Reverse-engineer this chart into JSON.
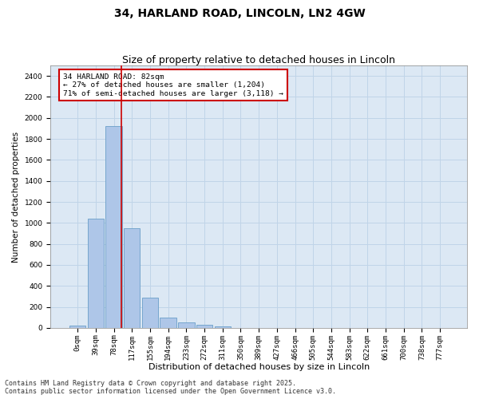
{
  "title": "34, HARLAND ROAD, LINCOLN, LN2 4GW",
  "subtitle": "Size of property relative to detached houses in Lincoln",
  "xlabel": "Distribution of detached houses by size in Lincoln",
  "ylabel": "Number of detached properties",
  "bar_color": "#aec6e8",
  "bar_edge_color": "#6a9fc8",
  "grid_color": "#c0d4e8",
  "background_color": "#dce8f4",
  "annotation_box_color": "#cc0000",
  "annotation_title": "34 HARLAND ROAD: 82sqm",
  "annotation_line1": "← 27% of detached houses are smaller (1,204)",
  "annotation_line2": "71% of semi-detached houses are larger (3,118) →",
  "red_line_bin_index": 2,
  "categories": [
    "0sqm",
    "39sqm",
    "78sqm",
    "117sqm",
    "155sqm",
    "194sqm",
    "233sqm",
    "272sqm",
    "311sqm",
    "350sqm",
    "389sqm",
    "427sqm",
    "466sqm",
    "505sqm",
    "544sqm",
    "583sqm",
    "622sqm",
    "661sqm",
    "700sqm",
    "738sqm",
    "777sqm"
  ],
  "values": [
    20,
    1040,
    1920,
    950,
    290,
    100,
    55,
    30,
    15,
    0,
    0,
    0,
    0,
    0,
    0,
    0,
    0,
    0,
    0,
    0,
    0
  ],
  "ylim": [
    0,
    2500
  ],
  "yticks": [
    0,
    200,
    400,
    600,
    800,
    1000,
    1200,
    1400,
    1600,
    1800,
    2000,
    2200,
    2400
  ],
  "footer_line1": "Contains HM Land Registry data © Crown copyright and database right 2025.",
  "footer_line2": "Contains public sector information licensed under the Open Government Licence v3.0.",
  "title_fontsize": 10,
  "subtitle_fontsize": 9,
  "tick_fontsize": 6.5,
  "ylabel_fontsize": 7.5,
  "xlabel_fontsize": 8,
  "annotation_fontsize": 6.8,
  "footer_fontsize": 6
}
